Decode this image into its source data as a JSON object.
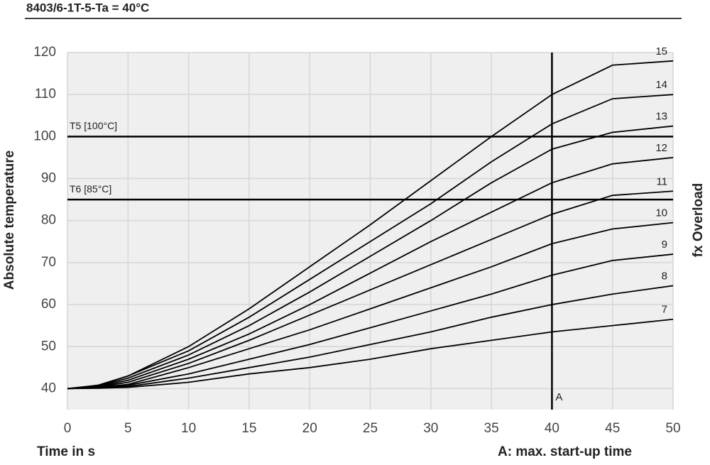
{
  "chart_data": {
    "type": "line",
    "title": "8403/6-1T-5-Ta = 40°C",
    "x_label": "Time in s",
    "y_label": "Absolute temperature",
    "y2_label": "fx Overload",
    "note": "A: max. start-up time",
    "x": [
      0,
      2.5,
      5,
      10,
      15,
      20,
      25,
      30,
      35,
      40,
      45,
      50
    ],
    "series": [
      {
        "name": "7",
        "color": "#000000",
        "values": [
          40,
          40.1,
          40.3,
          41.5,
          43.5,
          45,
          47,
          49.5,
          51.5,
          53.5,
          55,
          56.5
        ]
      },
      {
        "name": "8",
        "color": "#000000",
        "values": [
          40,
          40.2,
          40.5,
          42.5,
          45,
          47.5,
          50.5,
          53.5,
          57,
          60,
          62.5,
          64.5
        ]
      },
      {
        "name": "9",
        "color": "#000000",
        "values": [
          40,
          40.2,
          40.8,
          43.5,
          47,
          50.5,
          54.5,
          58.5,
          62.5,
          67,
          70.5,
          72
        ]
      },
      {
        "name": "10",
        "color": "#000000",
        "values": [
          40,
          40.3,
          41,
          45,
          49.5,
          54,
          59,
          64,
          69,
          74.5,
          78,
          79.5
        ]
      },
      {
        "name": "11",
        "color": "#000000",
        "values": [
          40,
          40.4,
          41.5,
          46,
          51.5,
          57.5,
          63.5,
          69.5,
          75.5,
          81.5,
          86,
          87
        ]
      },
      {
        "name": "12",
        "color": "#000000",
        "values": [
          40,
          40.5,
          42,
          47,
          53,
          60,
          67.5,
          75,
          82,
          89,
          93.5,
          95
        ]
      },
      {
        "name": "13",
        "color": "#000000",
        "values": [
          40,
          40.6,
          42.5,
          48,
          55,
          63,
          71.5,
          80,
          89,
          97,
          101,
          102.5
        ]
      },
      {
        "name": "14",
        "color": "#000000",
        "values": [
          40,
          40.7,
          43,
          49,
          57,
          66,
          75,
          84,
          94,
          103,
          109,
          110
        ]
      },
      {
        "name": "15",
        "color": "#000000",
        "values": [
          40,
          40.8,
          43,
          50,
          59,
          69,
          79,
          89.5,
          100,
          110,
          117,
          118
        ]
      }
    ],
    "hlines": [
      {
        "value": 100,
        "label": "T5 [100°C]"
      },
      {
        "value": 85,
        "label": "T6 [85°C]"
      }
    ],
    "vline": {
      "value": 40,
      "label": "A"
    },
    "xlim": [
      0,
      50
    ],
    "xticks": [
      0,
      5,
      10,
      15,
      20,
      25,
      30,
      35,
      40,
      45,
      50
    ],
    "ylim": [
      35,
      120
    ],
    "yticks": [
      40,
      50,
      60,
      70,
      80,
      90,
      100,
      110,
      120
    ],
    "grid": true
  }
}
